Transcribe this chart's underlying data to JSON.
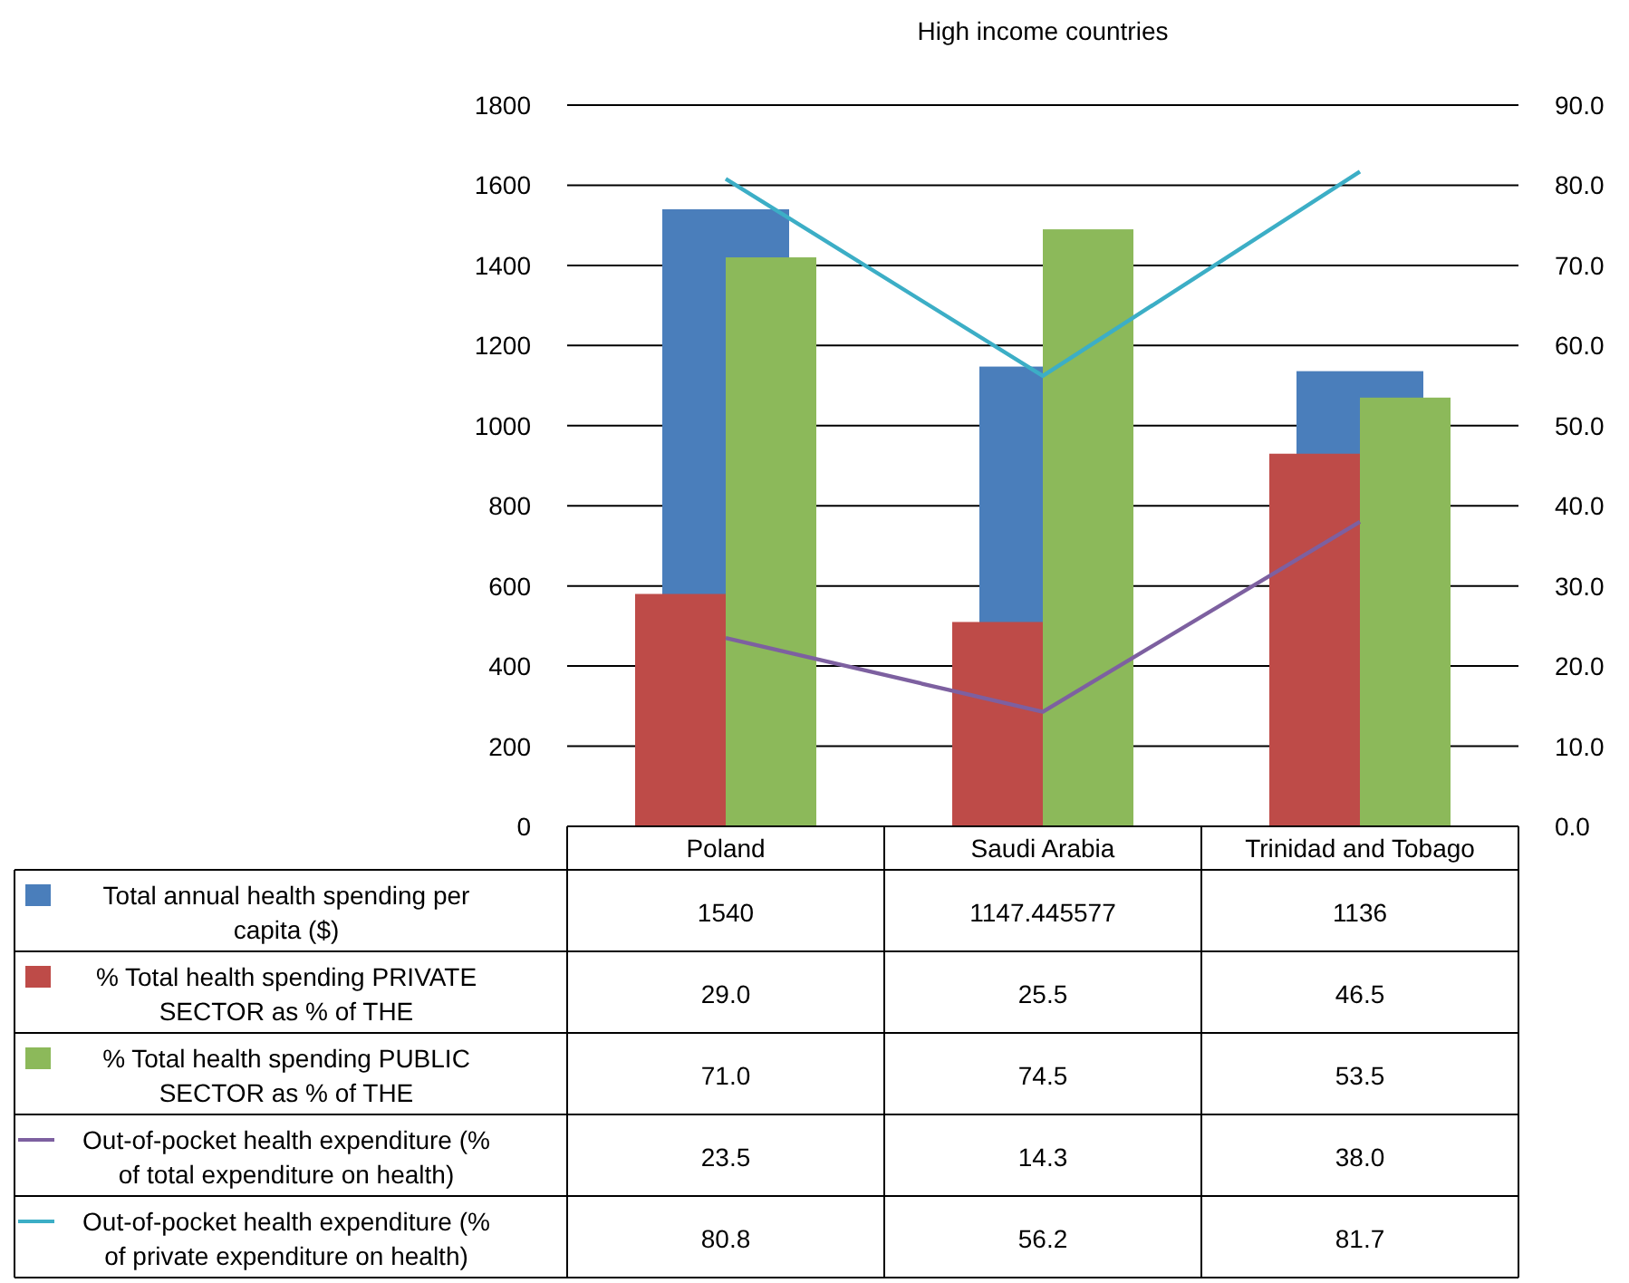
{
  "chart_data": {
    "type": "bar",
    "title": "High income countries",
    "categories": [
      "Poland",
      "Saudi Arabia",
      "Trinidad and Tobago"
    ],
    "series": [
      {
        "name": "Total annual health spending per capita ($)",
        "color": "#4a7ebb",
        "values": [
          1540,
          1147.445577,
          1136
        ],
        "value_labels": [
          "1540",
          "1147.445577",
          "1136"
        ]
      },
      {
        "name": "% Total health spending PRIVATE SECTOR as % of THE",
        "axis": "y2",
        "color": "#be4b48",
        "values": [
          29.0,
          25.5,
          46.5
        ],
        "value_labels": [
          "29.0",
          "25.5",
          "46.5"
        ]
      },
      {
        "name": "% Total health spending PUBLIC SECTOR as % of THE",
        "axis": "y2",
        "color": "#8cb95a",
        "values": [
          71.0,
          74.5,
          53.5
        ],
        "value_labels": [
          "71.0",
          "74.5",
          "53.5"
        ]
      },
      {
        "name": "Out-of-pocket health expenditure (% of total expenditure on health)",
        "type": "line",
        "axis": "y2",
        "color": "#7d60a0",
        "values": [
          23.5,
          14.3,
          38.0
        ],
        "value_labels": [
          "23.5",
          "14.3",
          "38.0"
        ]
      },
      {
        "name": "Out-of-pocket health expenditure (% of private expenditure on health)",
        "type": "line",
        "axis": "y2",
        "color": "#3caec6",
        "values": [
          80.8,
          56.2,
          81.7
        ],
        "value_labels": [
          "80.8",
          "56.2",
          "81.7"
        ]
      }
    ],
    "ylim": [
      0,
      1800
    ],
    "yticks": [
      0,
      200,
      400,
      600,
      800,
      1000,
      1200,
      1400,
      1600,
      1800
    ],
    "y2lim": [
      0,
      90
    ],
    "y2ticks": [
      {
        "value": 0,
        "label": "0.0"
      },
      {
        "value": 10,
        "label": "10.0"
      },
      {
        "value": 20,
        "label": "20.0"
      },
      {
        "value": 30,
        "label": "30.0"
      },
      {
        "value": 40,
        "label": "40.0"
      },
      {
        "value": 50,
        "label": "50.0"
      },
      {
        "value": 60,
        "label": "60.0"
      },
      {
        "value": 70,
        "label": "70.0"
      },
      {
        "value": 80,
        "label": "80.0"
      },
      {
        "value": 90,
        "label": "90.0"
      }
    ],
    "grid": "y",
    "legend": "bottom",
    "line_style": "solid",
    "marker": "none"
  }
}
